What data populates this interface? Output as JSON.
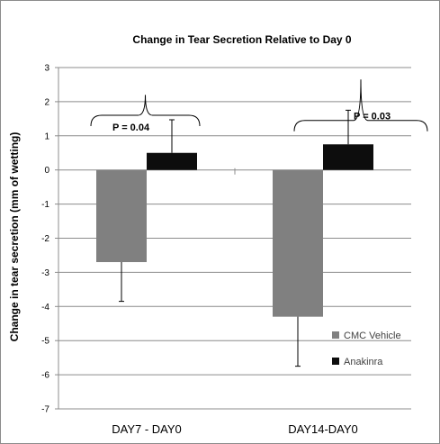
{
  "chart_data": {
    "type": "bar",
    "title": "Change in Tear Secretion Relative to  Day 0",
    "ylabel": "Change in tear secretion (mm of wetting)",
    "xlabel": "",
    "categories": [
      "DAY7 - DAY0",
      "DAY14-DAY0"
    ],
    "ylim": [
      -7,
      3
    ],
    "yticks": [
      3,
      2,
      1,
      0,
      -1,
      -2,
      -3,
      -4,
      -5,
      -6,
      -7
    ],
    "grid": true,
    "legend_position": "bottom-right",
    "series": [
      {
        "name": "CMC Vehicle",
        "values": [
          -2.7,
          -4.3
        ],
        "error": [
          1.15,
          1.45
        ],
        "color": "#808080"
      },
      {
        "name": "Anakinra",
        "values": [
          0.5,
          0.75
        ],
        "error": [
          0.97,
          1.0
        ],
        "color": "#0d0d0d"
      }
    ],
    "annotations": [
      {
        "text": "P = 0.04",
        "category_index": 0
      },
      {
        "text": "P = 0.03",
        "category_index": 1
      }
    ]
  }
}
